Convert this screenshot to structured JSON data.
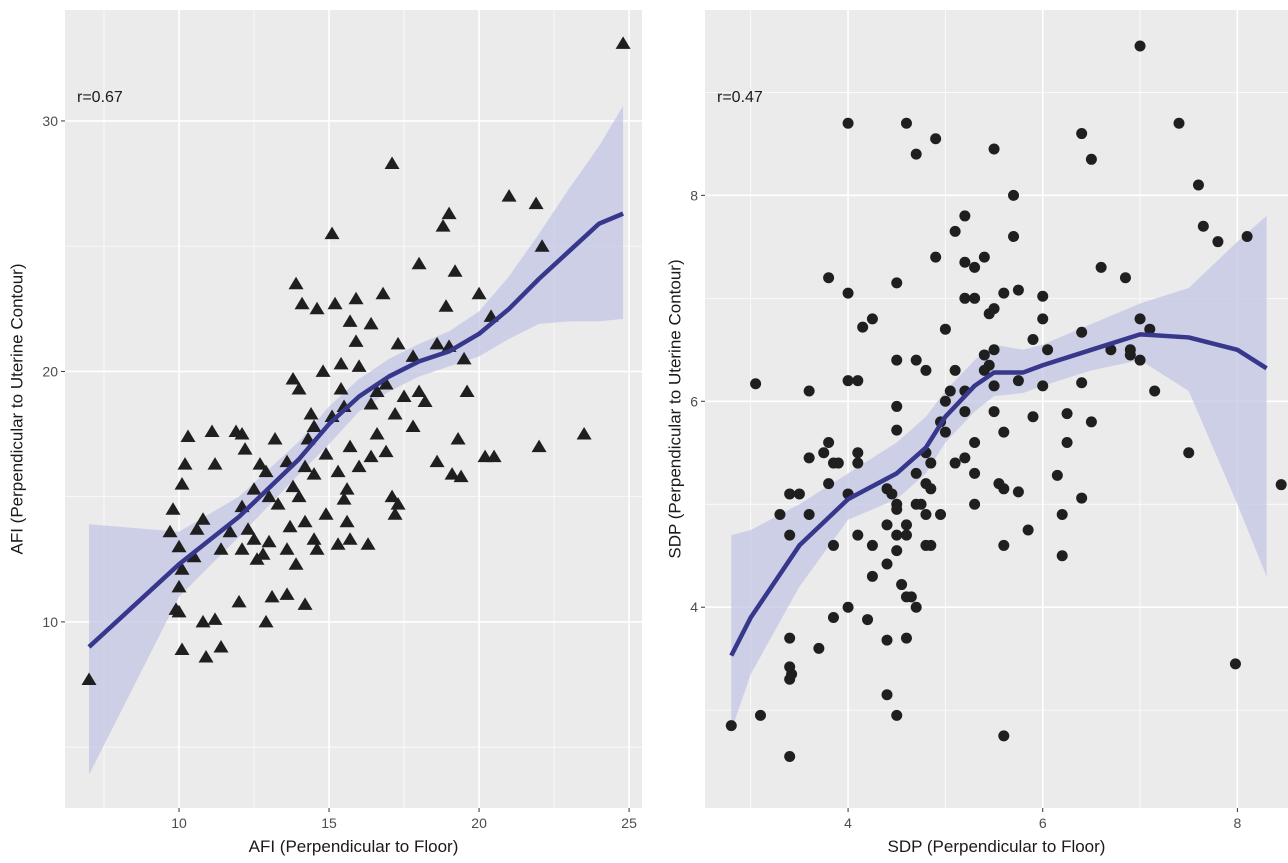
{
  "chart_data": [
    {
      "type": "scatter",
      "marker": "triangle",
      "point_color": "#1f1f1f",
      "smooth_color": "#37378c",
      "band_color": "#c3c6e6",
      "annotation": "r=0.67",
      "xlabel": "AFI (Perpendicular to Floor)",
      "ylabel": "AFI (Perpendicular to Uterine Contour)",
      "xlim": [
        6.2,
        25.43
      ],
      "ylim": [
        2.57,
        34.43
      ],
      "xticks": [
        10,
        15,
        20,
        25
      ],
      "yticks": [
        10,
        20,
        30
      ],
      "minor_xticks": [
        7.5,
        12.5,
        17.5,
        22.5
      ],
      "minor_yticks": [
        5,
        15,
        25
      ],
      "grid": true,
      "points": [
        [
          7.0,
          7.7
        ],
        [
          24.8,
          33.1
        ],
        [
          17.1,
          28.3
        ],
        [
          21.0,
          27.0
        ],
        [
          21.9,
          26.7
        ],
        [
          19.0,
          26.3
        ],
        [
          18.8,
          25.8
        ],
        [
          15.1,
          25.5
        ],
        [
          22.1,
          25.0
        ],
        [
          18.0,
          24.3
        ],
        [
          19.2,
          24.0
        ],
        [
          13.9,
          23.5
        ],
        [
          16.8,
          23.1
        ],
        [
          14.1,
          22.7
        ],
        [
          15.2,
          22.7
        ],
        [
          14.6,
          22.5
        ],
        [
          15.9,
          22.9
        ],
        [
          20.0,
          23.1
        ],
        [
          18.9,
          22.6
        ],
        [
          15.7,
          22.0
        ],
        [
          16.4,
          21.9
        ],
        [
          20.4,
          22.2
        ],
        [
          17.3,
          21.1
        ],
        [
          18.6,
          21.1
        ],
        [
          19.0,
          21.0
        ],
        [
          15.9,
          21.2
        ],
        [
          17.8,
          20.6
        ],
        [
          16.0,
          20.2
        ],
        [
          19.5,
          20.5
        ],
        [
          15.4,
          20.3
        ],
        [
          14.8,
          20.0
        ],
        [
          13.8,
          19.7
        ],
        [
          15.4,
          19.3
        ],
        [
          16.6,
          19.2
        ],
        [
          17.5,
          19.0
        ],
        [
          18.0,
          19.2
        ],
        [
          16.9,
          19.5
        ],
        [
          19.6,
          19.2
        ],
        [
          14.0,
          19.3
        ],
        [
          15.5,
          18.6
        ],
        [
          16.4,
          18.7
        ],
        [
          17.2,
          18.3
        ],
        [
          18.2,
          18.8
        ],
        [
          15.1,
          18.2
        ],
        [
          14.5,
          17.8
        ],
        [
          14.4,
          18.3
        ],
        [
          16.6,
          17.5
        ],
        [
          17.8,
          17.8
        ],
        [
          19.3,
          17.3
        ],
        [
          14.3,
          17.3
        ],
        [
          15.7,
          17.0
        ],
        [
          16.9,
          16.8
        ],
        [
          20.2,
          16.6
        ],
        [
          20.5,
          16.6
        ],
        [
          22.0,
          17.0
        ],
        [
          23.5,
          17.5
        ],
        [
          10.3,
          17.4
        ],
        [
          11.1,
          17.6
        ],
        [
          11.9,
          17.6
        ],
        [
          12.1,
          17.5
        ],
        [
          12.2,
          16.9
        ],
        [
          12.7,
          16.3
        ],
        [
          13.2,
          17.3
        ],
        [
          13.6,
          16.4
        ],
        [
          14.2,
          16.2
        ],
        [
          14.9,
          16.7
        ],
        [
          15.3,
          16.0
        ],
        [
          16.0,
          16.2
        ],
        [
          16.4,
          16.6
        ],
        [
          18.6,
          16.4
        ],
        [
          19.1,
          15.9
        ],
        [
          19.4,
          15.8
        ],
        [
          10.2,
          16.3
        ],
        [
          11.2,
          16.3
        ],
        [
          12.9,
          16.0
        ],
        [
          13.8,
          15.4
        ],
        [
          14.5,
          15.9
        ],
        [
          15.6,
          15.3
        ],
        [
          10.1,
          15.5
        ],
        [
          12.5,
          15.3
        ],
        [
          13.0,
          15.0
        ],
        [
          14.0,
          15.0
        ],
        [
          15.5,
          14.9
        ],
        [
          17.1,
          15.0
        ],
        [
          17.3,
          14.7
        ],
        [
          17.2,
          14.3
        ],
        [
          9.8,
          14.5
        ],
        [
          12.1,
          14.6
        ],
        [
          13.3,
          14.7
        ],
        [
          14.9,
          14.3
        ],
        [
          10.8,
          14.1
        ],
        [
          11.7,
          13.6
        ],
        [
          12.3,
          13.7
        ],
        [
          13.7,
          13.8
        ],
        [
          14.2,
          14.0
        ],
        [
          15.6,
          14.0
        ],
        [
          9.7,
          13.6
        ],
        [
          10.6,
          13.7
        ],
        [
          12.5,
          13.3
        ],
        [
          13.0,
          13.2
        ],
        [
          14.5,
          13.3
        ],
        [
          15.3,
          13.1
        ],
        [
          15.7,
          13.3
        ],
        [
          16.3,
          13.1
        ],
        [
          10.0,
          13.0
        ],
        [
          11.4,
          12.9
        ],
        [
          12.1,
          12.9
        ],
        [
          12.8,
          12.7
        ],
        [
          13.6,
          12.9
        ],
        [
          14.6,
          12.9
        ],
        [
          10.1,
          12.1
        ],
        [
          10.5,
          12.6
        ],
        [
          12.6,
          12.5
        ],
        [
          13.9,
          12.3
        ],
        [
          10.0,
          11.4
        ],
        [
          12.0,
          10.8
        ],
        [
          13.1,
          11.0
        ],
        [
          13.6,
          11.1
        ],
        [
          14.2,
          10.7
        ],
        [
          9.9,
          10.5
        ],
        [
          10.0,
          10.4
        ],
        [
          10.8,
          10.0
        ],
        [
          11.2,
          10.1
        ],
        [
          12.9,
          10.0
        ],
        [
          10.1,
          8.9
        ],
        [
          10.9,
          8.6
        ],
        [
          11.4,
          9.0
        ]
      ],
      "smooth": {
        "x": [
          7,
          10,
          12,
          14,
          15,
          16,
          17,
          18,
          19,
          20,
          21,
          22,
          23,
          24,
          24.8
        ],
        "y": [
          9.0,
          12.3,
          14.2,
          16.5,
          17.9,
          19.0,
          19.8,
          20.4,
          20.8,
          21.5,
          22.5,
          23.7,
          24.8,
          25.9,
          26.3
        ],
        "lower": [
          3.9,
          11.0,
          13.4,
          15.9,
          17.1,
          18.4,
          19.2,
          19.8,
          20.2,
          20.6,
          21.3,
          21.9,
          22.0,
          22.0,
          22.1
        ],
        "upper": [
          13.9,
          13.6,
          15.0,
          17.2,
          18.6,
          19.7,
          20.5,
          21.1,
          21.6,
          22.4,
          23.8,
          25.5,
          27.3,
          29.0,
          30.6
        ]
      }
    },
    {
      "type": "scatter",
      "marker": "circle",
      "point_color": "#1f1f1f",
      "smooth_color": "#37378c",
      "band_color": "#c3c6e6",
      "annotation": "r=0.47",
      "xlabel": "SDP (Perpendicular to Floor)",
      "ylabel": "SDP (Perpendicular to Uterine Contour)",
      "xlim": [
        2.53,
        8.52
      ],
      "ylim": [
        2.05,
        9.8
      ],
      "xticks": [
        4,
        6,
        8
      ],
      "yticks": [
        4,
        6,
        8
      ],
      "minor_xticks": [
        3,
        5,
        7
      ],
      "minor_yticks": [
        3,
        5,
        7,
        9
      ],
      "grid": true,
      "points": [
        [
          7.0,
          9.45
        ],
        [
          4.0,
          8.7
        ],
        [
          4.6,
          8.7
        ],
        [
          4.7,
          8.4
        ],
        [
          4.9,
          8.55
        ],
        [
          5.5,
          8.45
        ],
        [
          6.4,
          8.6
        ],
        [
          6.5,
          8.35
        ],
        [
          7.4,
          8.7
        ],
        [
          7.6,
          8.1
        ],
        [
          5.7,
          8.0
        ],
        [
          5.2,
          7.8
        ],
        [
          5.1,
          7.65
        ],
        [
          5.7,
          7.6
        ],
        [
          7.65,
          7.7
        ],
        [
          7.8,
          7.55
        ],
        [
          8.1,
          7.6
        ],
        [
          4.9,
          7.4
        ],
        [
          5.2,
          7.35
        ],
        [
          5.3,
          7.3
        ],
        [
          5.4,
          7.4
        ],
        [
          6.6,
          7.3
        ],
        [
          6.85,
          7.2
        ],
        [
          3.8,
          7.2
        ],
        [
          4.5,
          7.15
        ],
        [
          5.6,
          7.05
        ],
        [
          5.75,
          7.08
        ],
        [
          6.0,
          7.02
        ],
        [
          5.2,
          7.0
        ],
        [
          5.3,
          7.0
        ],
        [
          5.5,
          6.9
        ],
        [
          5.45,
          6.85
        ],
        [
          4.0,
          7.05
        ],
        [
          4.25,
          6.8
        ],
        [
          4.15,
          6.72
        ],
        [
          5.0,
          6.7
        ],
        [
          6.0,
          6.8
        ],
        [
          6.4,
          6.67
        ],
        [
          7.0,
          6.8
        ],
        [
          7.1,
          6.7
        ],
        [
          5.4,
          6.45
        ],
        [
          5.45,
          6.35
        ],
        [
          5.5,
          6.5
        ],
        [
          5.9,
          6.6
        ],
        [
          6.05,
          6.5
        ],
        [
          6.7,
          6.5
        ],
        [
          6.9,
          6.45
        ],
        [
          6.9,
          6.5
        ],
        [
          7.0,
          6.4
        ],
        [
          4.5,
          6.4
        ],
        [
          4.7,
          6.4
        ],
        [
          4.8,
          6.3
        ],
        [
          5.1,
          6.3
        ],
        [
          5.4,
          6.3
        ],
        [
          4.0,
          6.2
        ],
        [
          4.1,
          6.2
        ],
        [
          5.2,
          6.1
        ],
        [
          5.05,
          6.1
        ],
        [
          5.5,
          6.15
        ],
        [
          5.75,
          6.2
        ],
        [
          6.0,
          6.15
        ],
        [
          6.4,
          6.18
        ],
        [
          7.15,
          6.1
        ],
        [
          3.05,
          6.17
        ],
        [
          3.6,
          6.1
        ],
        [
          5.0,
          6.0
        ],
        [
          4.5,
          5.95
        ],
        [
          4.95,
          5.8
        ],
        [
          5.2,
          5.9
        ],
        [
          5.5,
          5.9
        ],
        [
          5.9,
          5.85
        ],
        [
          6.25,
          5.88
        ],
        [
          6.5,
          5.8
        ],
        [
          4.5,
          5.72
        ],
        [
          5.0,
          5.7
        ],
        [
          5.3,
          5.6
        ],
        [
          5.6,
          5.7
        ],
        [
          6.25,
          5.6
        ],
        [
          7.5,
          5.5
        ],
        [
          3.8,
          5.6
        ],
        [
          3.75,
          5.5
        ],
        [
          3.6,
          5.45
        ],
        [
          3.85,
          5.4
        ],
        [
          4.1,
          5.5
        ],
        [
          4.1,
          5.4
        ],
        [
          4.8,
          5.5
        ],
        [
          4.85,
          5.4
        ],
        [
          5.1,
          5.4
        ],
        [
          5.2,
          5.45
        ],
        [
          3.9,
          5.4
        ],
        [
          4.7,
          5.3
        ],
        [
          5.3,
          5.3
        ],
        [
          6.15,
          5.28
        ],
        [
          3.8,
          5.2
        ],
        [
          4.4,
          5.15
        ],
        [
          4.45,
          5.1
        ],
        [
          4.8,
          5.2
        ],
        [
          4.85,
          5.15
        ],
        [
          5.55,
          5.2
        ],
        [
          5.6,
          5.15
        ],
        [
          5.75,
          5.12
        ],
        [
          6.4,
          5.06
        ],
        [
          3.4,
          5.1
        ],
        [
          3.5,
          5.1
        ],
        [
          4.0,
          5.1
        ],
        [
          4.5,
          5.0
        ],
        [
          4.7,
          5.0
        ],
        [
          4.75,
          5.0
        ],
        [
          5.3,
          5.0
        ],
        [
          8.45,
          5.19
        ],
        [
          3.3,
          4.9
        ],
        [
          3.6,
          4.9
        ],
        [
          4.5,
          4.95
        ],
        [
          4.8,
          4.9
        ],
        [
          4.95,
          4.9
        ],
        [
          6.2,
          4.9
        ],
        [
          4.4,
          4.8
        ],
        [
          4.6,
          4.8
        ],
        [
          5.85,
          4.75
        ],
        [
          3.4,
          4.7
        ],
        [
          4.1,
          4.7
        ],
        [
          4.5,
          4.7
        ],
        [
          4.6,
          4.7
        ],
        [
          3.85,
          4.6
        ],
        [
          4.25,
          4.6
        ],
        [
          4.8,
          4.6
        ],
        [
          4.85,
          4.6
        ],
        [
          5.6,
          4.6
        ],
        [
          4.5,
          4.55
        ],
        [
          6.2,
          4.5
        ],
        [
          4.4,
          4.42
        ],
        [
          4.25,
          4.3
        ],
        [
          4.55,
          4.22
        ],
        [
          4.6,
          4.1
        ],
        [
          4.65,
          4.1
        ],
        [
          4.0,
          4.0
        ],
        [
          4.7,
          4.0
        ],
        [
          3.85,
          3.9
        ],
        [
          4.2,
          3.88
        ],
        [
          3.4,
          3.7
        ],
        [
          4.4,
          3.68
        ],
        [
          4.6,
          3.7
        ],
        [
          3.7,
          3.6
        ],
        [
          3.4,
          3.42
        ],
        [
          3.42,
          3.35
        ],
        [
          3.4,
          3.3
        ],
        [
          7.98,
          3.45
        ],
        [
          4.4,
          3.15
        ],
        [
          3.1,
          2.95
        ],
        [
          2.8,
          2.85
        ],
        [
          4.5,
          2.95
        ],
        [
          3.4,
          2.55
        ],
        [
          5.6,
          2.75
        ]
      ],
      "smooth": {
        "x": [
          2.8,
          3.0,
          3.5,
          4.0,
          4.5,
          4.8,
          5.0,
          5.3,
          5.5,
          5.8,
          6.0,
          6.5,
          7.0,
          7.5,
          8.0,
          8.3
        ],
        "y": [
          3.53,
          3.9,
          4.6,
          5.05,
          5.3,
          5.55,
          5.85,
          6.15,
          6.28,
          6.28,
          6.35,
          6.5,
          6.65,
          6.62,
          6.5,
          6.32
        ],
        "lower": [
          2.8,
          3.35,
          4.2,
          4.85,
          5.05,
          5.3,
          5.6,
          5.9,
          6.05,
          6.08,
          6.15,
          6.3,
          6.4,
          6.1,
          5.0,
          4.3
        ],
        "upper": [
          4.7,
          4.75,
          5.0,
          5.3,
          5.6,
          5.85,
          6.1,
          6.4,
          6.55,
          6.5,
          6.55,
          6.75,
          6.95,
          7.1,
          7.55,
          7.8
        ]
      }
    }
  ]
}
